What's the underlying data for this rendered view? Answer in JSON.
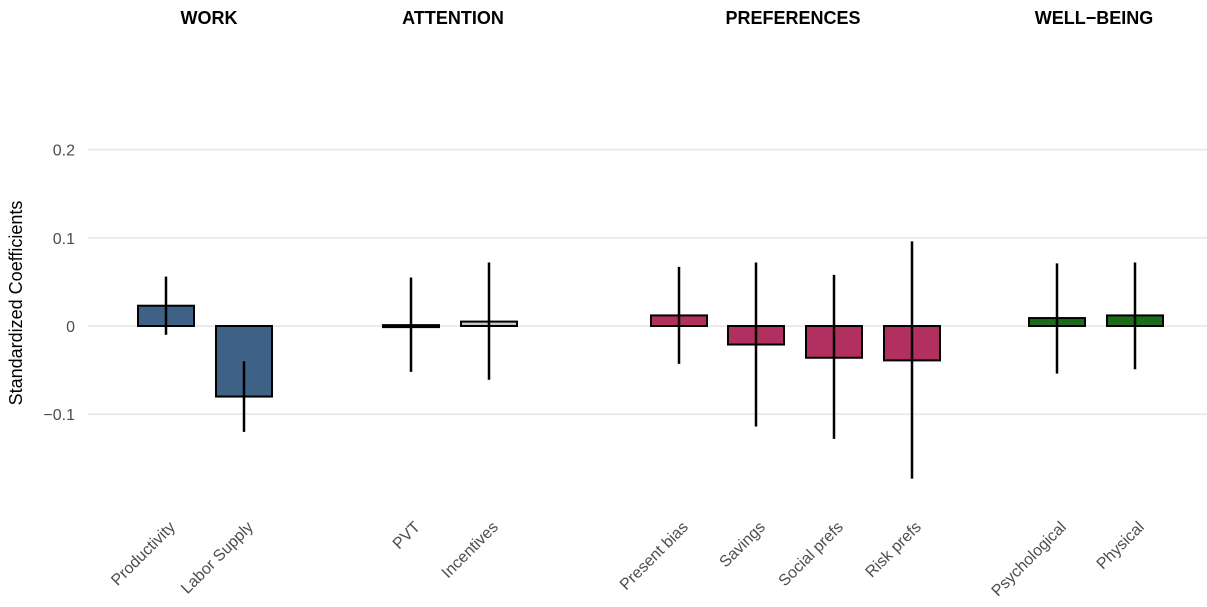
{
  "chart_data": {
    "type": "bar",
    "ylabel": "Standardized Coefficients",
    "ylim": [
      -0.2,
      0.2
    ],
    "yticks": [
      {
        "value": 0.2,
        "label": "0.2"
      },
      {
        "value": 0.1,
        "label": "0.1"
      },
      {
        "value": 0,
        "label": "0"
      },
      {
        "value": -0.1,
        "label": "−0.1"
      }
    ],
    "grid": true,
    "groups": [
      {
        "title": "WORK",
        "color": "#3d6285",
        "items": [
          {
            "label": "Productivity",
            "value": 0.023,
            "ci_low": -0.01,
            "ci_high": 0.056
          },
          {
            "label": "Labor Supply",
            "value": -0.08,
            "ci_low": -0.12,
            "ci_high": -0.04
          }
        ]
      },
      {
        "title": "ATTENTION",
        "color": "#c8c8c8",
        "items": [
          {
            "label": "PVT",
            "value": 0.001,
            "ci_low": -0.052,
            "ci_high": 0.055
          },
          {
            "label": "Incentives",
            "value": 0.005,
            "ci_low": -0.061,
            "ci_high": 0.072
          }
        ]
      },
      {
        "title": "PREFERENCES",
        "color": "#b23060",
        "items": [
          {
            "label": "Present bias",
            "value": 0.012,
            "ci_low": -0.043,
            "ci_high": 0.067
          },
          {
            "label": "Savings",
            "value": -0.021,
            "ci_low": -0.114,
            "ci_high": 0.072
          },
          {
            "label": "Social prefs",
            "value": -0.036,
            "ci_low": -0.128,
            "ci_high": 0.058
          },
          {
            "label": "Risk prefs",
            "value": -0.039,
            "ci_low": -0.173,
            "ci_high": 0.096
          }
        ]
      },
      {
        "title": "WELL−BEING",
        "color": "#1b6b1b",
        "items": [
          {
            "label": "Psychological",
            "value": 0.009,
            "ci_low": -0.054,
            "ci_high": 0.071
          },
          {
            "label": "Physical",
            "value": 0.012,
            "ci_low": -0.049,
            "ci_high": 0.072
          }
        ]
      }
    ]
  }
}
